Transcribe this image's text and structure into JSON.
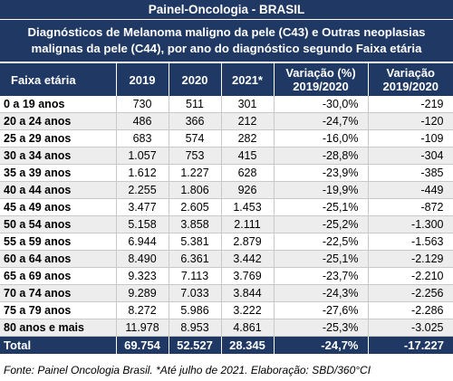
{
  "header": {
    "title": "Painel-Oncologia - BRASIL",
    "subtitle_line1": "Diagnósticos de Melanoma maligno da pele (C43) e Outras neoplasias",
    "subtitle_line2": "malignas da pele (C44), por ano do diagnóstico segundo Faixa etária"
  },
  "table": {
    "columns": {
      "age": "Faixa etária",
      "y2019": "2019",
      "y2020": "2020",
      "y2021": "2021*",
      "var_pct_l1": "Variação (%)",
      "var_pct_l2": "2019/2020",
      "var_abs_l1": "Variação",
      "var_abs_l2": "2019/2020"
    },
    "rows": [
      {
        "age": "0 a 19 anos",
        "y2019": "730",
        "y2020": "511",
        "y2021": "301",
        "var_pct": "-30,0%",
        "var_abs": "-219"
      },
      {
        "age": "20 a 24 anos",
        "y2019": "486",
        "y2020": "366",
        "y2021": "212",
        "var_pct": "-24,7%",
        "var_abs": "-120"
      },
      {
        "age": "25 a 29 anos",
        "y2019": "683",
        "y2020": "574",
        "y2021": "282",
        "var_pct": "-16,0%",
        "var_abs": "-109"
      },
      {
        "age": "30 a 34 anos",
        "y2019": "1.057",
        "y2020": "753",
        "y2021": "415",
        "var_pct": "-28,8%",
        "var_abs": "-304"
      },
      {
        "age": "35 a 39 anos",
        "y2019": "1.612",
        "y2020": "1.227",
        "y2021": "628",
        "var_pct": "-23,9%",
        "var_abs": "-385"
      },
      {
        "age": "40 a 44 anos",
        "y2019": "2.255",
        "y2020": "1.806",
        "y2021": "926",
        "var_pct": "-19,9%",
        "var_abs": "-449"
      },
      {
        "age": "45 a 49 anos",
        "y2019": "3.477",
        "y2020": "2.605",
        "y2021": "1.453",
        "var_pct": "-25,1%",
        "var_abs": "-872"
      },
      {
        "age": "50 a 54 anos",
        "y2019": "5.158",
        "y2020": "3.858",
        "y2021": "2.111",
        "var_pct": "-25,2%",
        "var_abs": "-1.300"
      },
      {
        "age": "55 a 59 anos",
        "y2019": "6.944",
        "y2020": "5.381",
        "y2021": "2.879",
        "var_pct": "-22,5%",
        "var_abs": "-1.563"
      },
      {
        "age": "60 a 64 anos",
        "y2019": "8.490",
        "y2020": "6.361",
        "y2021": "3.442",
        "var_pct": "-25,1%",
        "var_abs": "-2.129"
      },
      {
        "age": "65 a 69 anos",
        "y2019": "9.323",
        "y2020": "7.113",
        "y2021": "3.769",
        "var_pct": "-23,7%",
        "var_abs": "-2.210"
      },
      {
        "age": "70 a 74 anos",
        "y2019": "9.289",
        "y2020": "7.033",
        "y2021": "3.844",
        "var_pct": "-24,3%",
        "var_abs": "-2.256"
      },
      {
        "age": "75 a 79 anos",
        "y2019": "8.272",
        "y2020": "5.986",
        "y2021": "3.222",
        "var_pct": "-27,6%",
        "var_abs": "-2.286"
      },
      {
        "age": "80 anos e mais",
        "y2019": "11.978",
        "y2020": "8.953",
        "y2021": "4.861",
        "var_pct": "-25,3%",
        "var_abs": "-3.025"
      }
    ],
    "total": {
      "age": "Total",
      "y2019": "69.754",
      "y2020": "52.527",
      "y2021": "28.345",
      "var_pct": "-24,7%",
      "var_abs": "-17.227"
    }
  },
  "footer": {
    "source": "Fonte: Painel Oncologia Brasil. *Até julho de 2021. Elaboração: SBD/360°CI"
  },
  "colors": {
    "header_bg": "#1f3864",
    "header_text": "#ffffff",
    "stripe": "#ededed"
  }
}
